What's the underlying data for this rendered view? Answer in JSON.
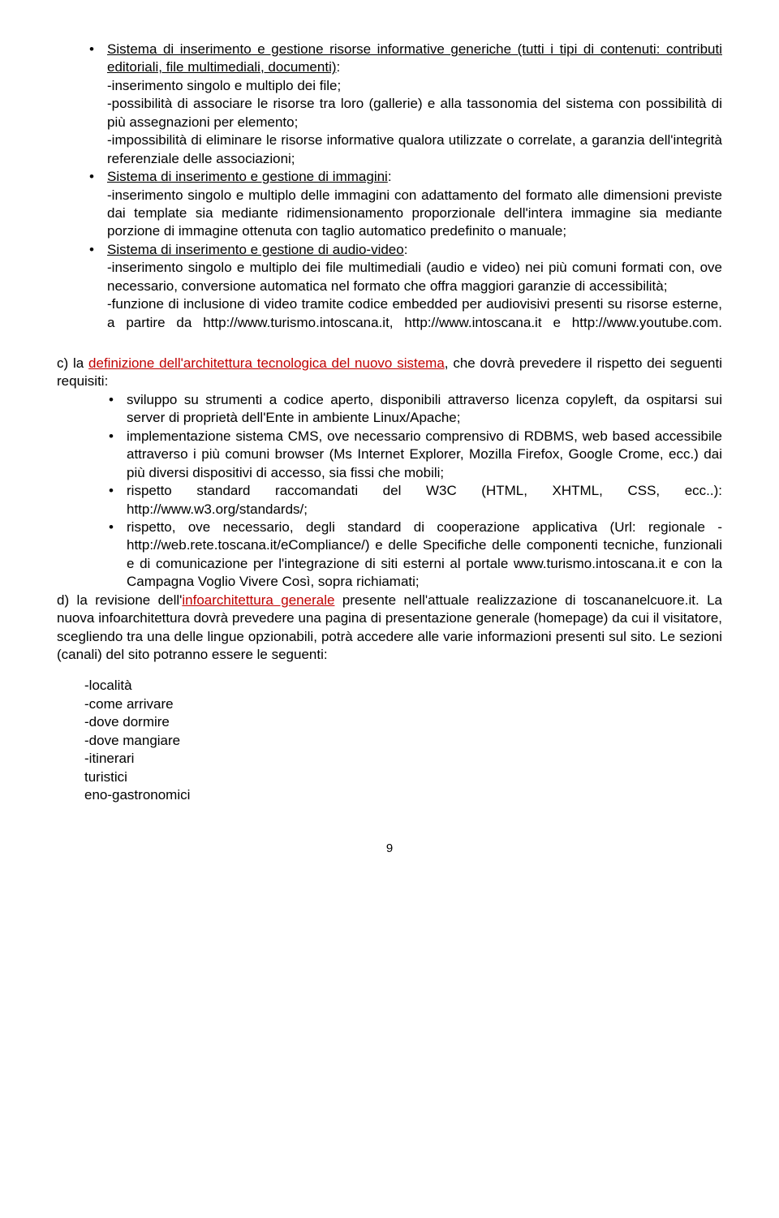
{
  "topList": {
    "item1_underlined": "Sistema di inserimento e gestione risorse informative generiche (tutti i tipi di contenuti: contributi editoriali, file multimediali, documenti)",
    "item1_rest": ":",
    "item1_sub1": "-inserimento singolo e multiplo dei file;",
    "item1_sub2": "-possibilità di associare le risorse tra loro (gallerie) e alla tassonomia del sistema con possibilità di più assegnazioni per elemento;",
    "item1_sub3": "-impossibilità di eliminare le risorse informative qualora utilizzate o correlate, a garanzia dell'integrità referenziale delle associazioni;",
    "item2_underlined": "Sistema di inserimento e gestione di immagini",
    "item2_rest": ":",
    "item2_sub1": "-inserimento singolo e multiplo delle immagini con adattamento del formato alle dimensioni previste dai template sia mediante ridimensionamento proporzionale dell'intera immagine sia mediante porzione di immagine ottenuta con taglio automatico predefinito o manuale;",
    "item3_underlined": "Sistema di inserimento e gestione di audio-video",
    "item3_rest": ":",
    "item3_sub1": "-inserimento singolo e multiplo dei file multimediali (audio e video) nei più comuni formati con, ove necessario, conversione automatica nel formato che offra maggiori garanzie di accessibilità;",
    "item3_sub2": "-funzione di inclusione di video tramite codice embedded per audiovisivi presenti su risorse esterne, a partire da http://www.turismo.intoscana.it, http://www.intoscana.it e http://www.youtube.com."
  },
  "sectionC": {
    "lead_pre": "c) la ",
    "lead_red": "definizione dell'architettura tecnologica del nuovo sistema",
    "lead_post": ", che dovrà prevedere il rispetto dei seguenti requisiti:",
    "b1": "sviluppo su strumenti a codice aperto, disponibili attraverso licenza copyleft, da ospitarsi sui server di proprietà dell'Ente in ambiente Linux/Apache;",
    "b2": "implementazione sistema CMS, ove necessario comprensivo di RDBMS, web based accessibile attraverso i più comuni browser (Ms Internet Explorer, Mozilla Firefox, Google Crome, ecc.) dai più diversi dispositivi di accesso, sia fissi che mobili;",
    "b3": "rispetto standard raccomandati del W3C (HTML, XHTML, CSS, ecc..): http://www.w3.org/standards/;",
    "b4": "rispetto, ove necessario, degli standard di cooperazione applicativa (Url: regionale - http://web.rete.toscana.it/eCompliance/) e delle Specifiche delle componenti tecniche, funzionali e di comunicazione per l'integrazione di siti esterni al portale www.turismo.intoscana.it e con la Campagna Voglio Vivere Così, sopra richiamati;"
  },
  "sectionD": {
    "pre": "d) la revisione dell'",
    "red": "infoarchitettura generale",
    "post": " presente nell'attuale realizzazione di toscananelcuore.it. La nuova infoarchitettura dovrà prevedere una pagina di presentazione generale (homepage) da cui il visitatore, scegliendo tra una delle lingue opzionabili, potrà accedere alle varie informazioni presenti sul sito. Le sezioni (canali) del sito potranno essere le seguenti:"
  },
  "dashList": {
    "d1": "-località",
    "d2": "-come arrivare",
    "d3": "-dove dormire",
    "d4": "-dove mangiare",
    "d5": "-itinerari",
    "d5a": "turistici",
    "d5b": "eno-gastronomici"
  },
  "pageNumber": "9"
}
